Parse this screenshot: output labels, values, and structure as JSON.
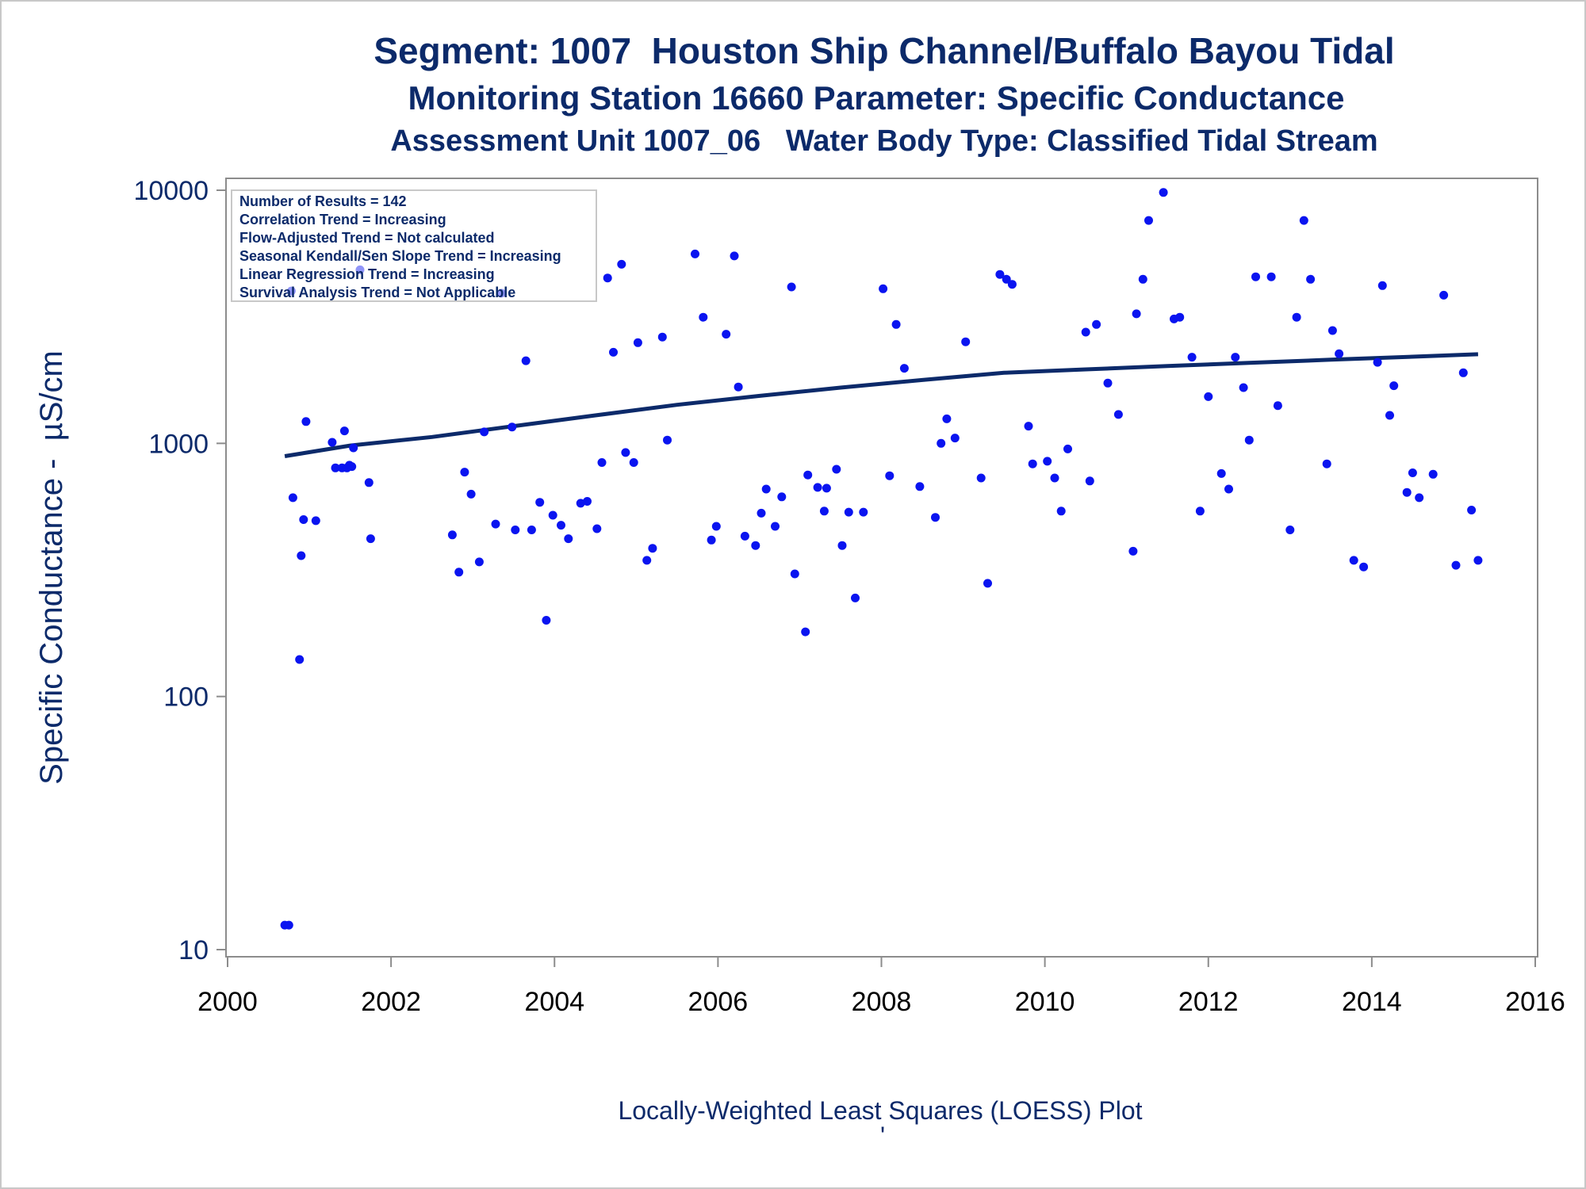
{
  "chart_data": {
    "type": "scatter",
    "title": "Segment: 1007  Houston Ship Channel/Buffalo Bayou Tidal",
    "subtitle": "Monitoring Station 16660 Parameter: Specific Conductance",
    "subtitle2": "Assessment Unit 1007_06   Water Body Type: Classified Tidal Stream",
    "ylabel": "Specific Conductance -  µS/cm",
    "xlabel": "Locally-Weighted Least Squares (LOESS) Plot",
    "footnote_mark": "'",
    "yscale": "log",
    "ylim": [
      10,
      10000
    ],
    "xlim": [
      2000,
      2016
    ],
    "yticks": [
      "10",
      "100",
      "1000",
      "10000"
    ],
    "xticks": [
      "2000",
      "2002",
      "2004",
      "2006",
      "2008",
      "2010",
      "2012",
      "2014",
      "2016"
    ],
    "grid": false,
    "annotations": [
      "Number of Results = 142",
      "Correlation Trend = Increasing",
      "Flow-Adjusted Trend = Not calculated",
      "Seasonal Kendall/Sen Slope Trend = Increasing",
      "Linear Regression Trend = Increasing",
      "Survival Analysis Trend = Not Applicable"
    ],
    "colors": {
      "points": "#0a14f0",
      "trend": "#0c2a6a",
      "text": "#0c2a6a",
      "axis": "#8c8c8c"
    },
    "points": [
      [
        2000.7,
        12.5
      ],
      [
        2000.75,
        12.5
      ],
      [
        2000.78,
        4000
      ],
      [
        2000.8,
        610
      ],
      [
        2000.88,
        140
      ],
      [
        2000.9,
        360
      ],
      [
        2000.93,
        500
      ],
      [
        2000.96,
        1220
      ],
      [
        2001.08,
        495
      ],
      [
        2001.28,
        1010
      ],
      [
        2001.32,
        800
      ],
      [
        2001.4,
        800
      ],
      [
        2001.43,
        1120
      ],
      [
        2001.46,
        800
      ],
      [
        2001.49,
        820
      ],
      [
        2001.52,
        810
      ],
      [
        2001.54,
        960
      ],
      [
        2001.62,
        4850
      ],
      [
        2001.73,
        700
      ],
      [
        2001.75,
        420
      ],
      [
        2002.75,
        435
      ],
      [
        2002.83,
        310
      ],
      [
        2002.9,
        770
      ],
      [
        2002.98,
        630
      ],
      [
        2003.08,
        340
      ],
      [
        2003.14,
        1110
      ],
      [
        2003.28,
        480
      ],
      [
        2003.35,
        3920
      ],
      [
        2003.48,
        1160
      ],
      [
        2003.52,
        455
      ],
      [
        2003.65,
        2120
      ],
      [
        2003.72,
        455
      ],
      [
        2003.82,
        585
      ],
      [
        2003.9,
        200
      ],
      [
        2003.98,
        520
      ],
      [
        2004.08,
        475
      ],
      [
        2004.17,
        420
      ],
      [
        2004.32,
        580
      ],
      [
        2004.4,
        590
      ],
      [
        2004.52,
        460
      ],
      [
        2004.58,
        840
      ],
      [
        2004.65,
        4500
      ],
      [
        2004.72,
        2290
      ],
      [
        2004.82,
        5100
      ],
      [
        2004.87,
        920
      ],
      [
        2004.97,
        840
      ],
      [
        2005.02,
        2500
      ],
      [
        2005.13,
        345
      ],
      [
        2005.2,
        385
      ],
      [
        2005.32,
        2630
      ],
      [
        2005.38,
        1030
      ],
      [
        2005.72,
        5600
      ],
      [
        2005.82,
        3150
      ],
      [
        2005.92,
        415
      ],
      [
        2005.98,
        470
      ],
      [
        2006.1,
        2700
      ],
      [
        2006.2,
        5500
      ],
      [
        2006.25,
        1670
      ],
      [
        2006.33,
        430
      ],
      [
        2006.46,
        395
      ],
      [
        2006.53,
        530
      ],
      [
        2006.59,
        660
      ],
      [
        2006.7,
        470
      ],
      [
        2006.78,
        615
      ],
      [
        2006.9,
        4150
      ],
      [
        2006.94,
        305
      ],
      [
        2007.07,
        180
      ],
      [
        2007.1,
        750
      ],
      [
        2007.22,
        670
      ],
      [
        2007.3,
        540
      ],
      [
        2007.33,
        665
      ],
      [
        2007.45,
        790
      ],
      [
        2007.52,
        395
      ],
      [
        2007.6,
        535
      ],
      [
        2007.68,
        245
      ],
      [
        2007.78,
        535
      ],
      [
        2008.02,
        4080
      ],
      [
        2008.1,
        745
      ],
      [
        2008.18,
        2950
      ],
      [
        2008.28,
        1980
      ],
      [
        2008.47,
        675
      ],
      [
        2008.66,
        510
      ],
      [
        2008.73,
        1000
      ],
      [
        2008.8,
        1250
      ],
      [
        2008.9,
        1050
      ],
      [
        2009.03,
        2520
      ],
      [
        2009.22,
        730
      ],
      [
        2009.3,
        280
      ],
      [
        2009.45,
        4650
      ],
      [
        2009.53,
        4450
      ],
      [
        2009.6,
        4250
      ],
      [
        2009.8,
        1170
      ],
      [
        2009.85,
        830
      ],
      [
        2010.03,
        850
      ],
      [
        2010.12,
        730
      ],
      [
        2010.2,
        540
      ],
      [
        2010.28,
        950
      ],
      [
        2010.5,
        2750
      ],
      [
        2010.55,
        710
      ],
      [
        2010.63,
        2950
      ],
      [
        2010.77,
        1730
      ],
      [
        2010.9,
        1300
      ],
      [
        2011.08,
        375
      ],
      [
        2011.12,
        3250
      ],
      [
        2011.2,
        4450
      ],
      [
        2011.27,
        7600
      ],
      [
        2011.45,
        9800
      ],
      [
        2011.58,
        3100
      ],
      [
        2011.65,
        3150
      ],
      [
        2011.8,
        2190
      ],
      [
        2011.9,
        540
      ],
      [
        2012.0,
        1530
      ],
      [
        2012.16,
        760
      ],
      [
        2012.25,
        660
      ],
      [
        2012.33,
        2190
      ],
      [
        2012.43,
        1660
      ],
      [
        2012.5,
        1030
      ],
      [
        2012.58,
        4550
      ],
      [
        2012.77,
        4550
      ],
      [
        2012.85,
        1410
      ],
      [
        2013.0,
        455
      ],
      [
        2013.08,
        3150
      ],
      [
        2013.17,
        7600
      ],
      [
        2013.25,
        4450
      ],
      [
        2013.45,
        830
      ],
      [
        2013.52,
        2790
      ],
      [
        2013.6,
        2260
      ],
      [
        2013.78,
        345
      ],
      [
        2013.9,
        325
      ],
      [
        2014.07,
        2090
      ],
      [
        2014.13,
        4200
      ],
      [
        2014.22,
        1290
      ],
      [
        2014.27,
        1690
      ],
      [
        2014.43,
        640
      ],
      [
        2014.5,
        765
      ],
      [
        2014.58,
        610
      ],
      [
        2014.75,
        755
      ],
      [
        2014.88,
        3850
      ],
      [
        2015.03,
        330
      ],
      [
        2015.12,
        1900
      ],
      [
        2015.22,
        545
      ],
      [
        2015.3,
        345
      ]
    ],
    "trend": [
      [
        2000.7,
        890
      ],
      [
        2001.5,
        980
      ],
      [
        2002.5,
        1060
      ],
      [
        2003.5,
        1170
      ],
      [
        2004.5,
        1290
      ],
      [
        2005.5,
        1420
      ],
      [
        2006.5,
        1540
      ],
      [
        2007.5,
        1660
      ],
      [
        2008.5,
        1780
      ],
      [
        2009.5,
        1900
      ],
      [
        2010.5,
        1960
      ],
      [
        2011.5,
        2020
      ],
      [
        2012.5,
        2080
      ],
      [
        2013.5,
        2140
      ],
      [
        2014.5,
        2200
      ],
      [
        2015.3,
        2250
      ]
    ]
  }
}
